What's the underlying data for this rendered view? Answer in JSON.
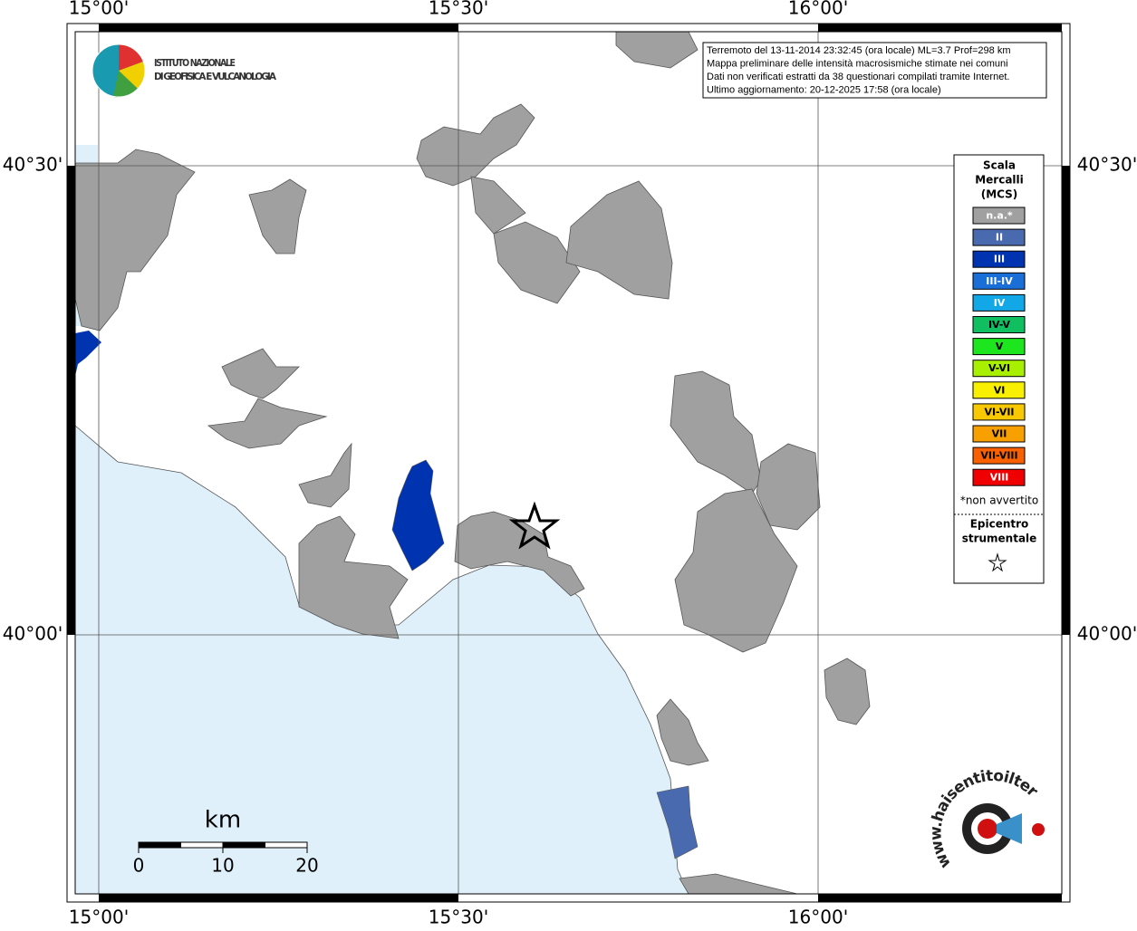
{
  "info": {
    "lines": [
      "Terremoto del 13-11-2014 23:32:45 (ora locale) ML=3.7 Prof=298 km",
      "Mappa preliminare delle intensità macrosismiche stimate nei comuni",
      "Dati non verificati estratti da 38 questionari compilati tramite Internet.",
      "Ultimo aggiornamento: 20-12-2025 17:58 (ora locale)"
    ]
  },
  "axes": {
    "top": [
      "15°00'",
      "15°30'",
      "16°00'"
    ],
    "bottom": [
      "15°00'",
      "15°30'",
      "16°00'"
    ],
    "left": [
      "40°30'",
      "40°00'"
    ],
    "right": [
      "40°30'",
      "40°00'"
    ]
  },
  "legend": {
    "title": [
      "Scala",
      "Mercalli",
      "(MCS)"
    ],
    "items": [
      {
        "label": "n.a.*",
        "color": "#a0a0a0",
        "text_color": "#ffffff"
      },
      {
        "label": "II",
        "color": "#4a6ab0",
        "text_color": "#ffffff"
      },
      {
        "label": "III",
        "color": "#0033b0",
        "text_color": "#ffffff"
      },
      {
        "label": "III-IV",
        "color": "#1a6ed8",
        "text_color": "#ffffff"
      },
      {
        "label": "IV",
        "color": "#12a8e8",
        "text_color": "#ffffff"
      },
      {
        "label": "IV-V",
        "color": "#10c060",
        "text_color": "#000000"
      },
      {
        "label": "V",
        "color": "#1ee61e",
        "text_color": "#000000"
      },
      {
        "label": "V-VI",
        "color": "#a8f000",
        "text_color": "#000000"
      },
      {
        "label": "VI",
        "color": "#f8f000",
        "text_color": "#000000"
      },
      {
        "label": "VI-VII",
        "color": "#f8c800",
        "text_color": "#000000"
      },
      {
        "label": "VII",
        "color": "#f8a000",
        "text_color": "#000000"
      },
      {
        "label": "VII-VIII",
        "color": "#f86000",
        "text_color": "#000000"
      },
      {
        "label": "VIII",
        "color": "#f00000",
        "text_color": "#ffffff"
      }
    ],
    "note": "*non avvertito",
    "epicenter": [
      "Epicentro",
      "strumentale"
    ]
  },
  "scale_bar": {
    "unit": "km",
    "ticks": [
      0,
      10,
      20
    ]
  },
  "logos": {
    "ingv": [
      "ISTITUTO NAZIONALE",
      "DI GEOFISICA E VULCANOLOGIA"
    ],
    "hsit": "www.haisentitoilterremoto.it"
  }
}
